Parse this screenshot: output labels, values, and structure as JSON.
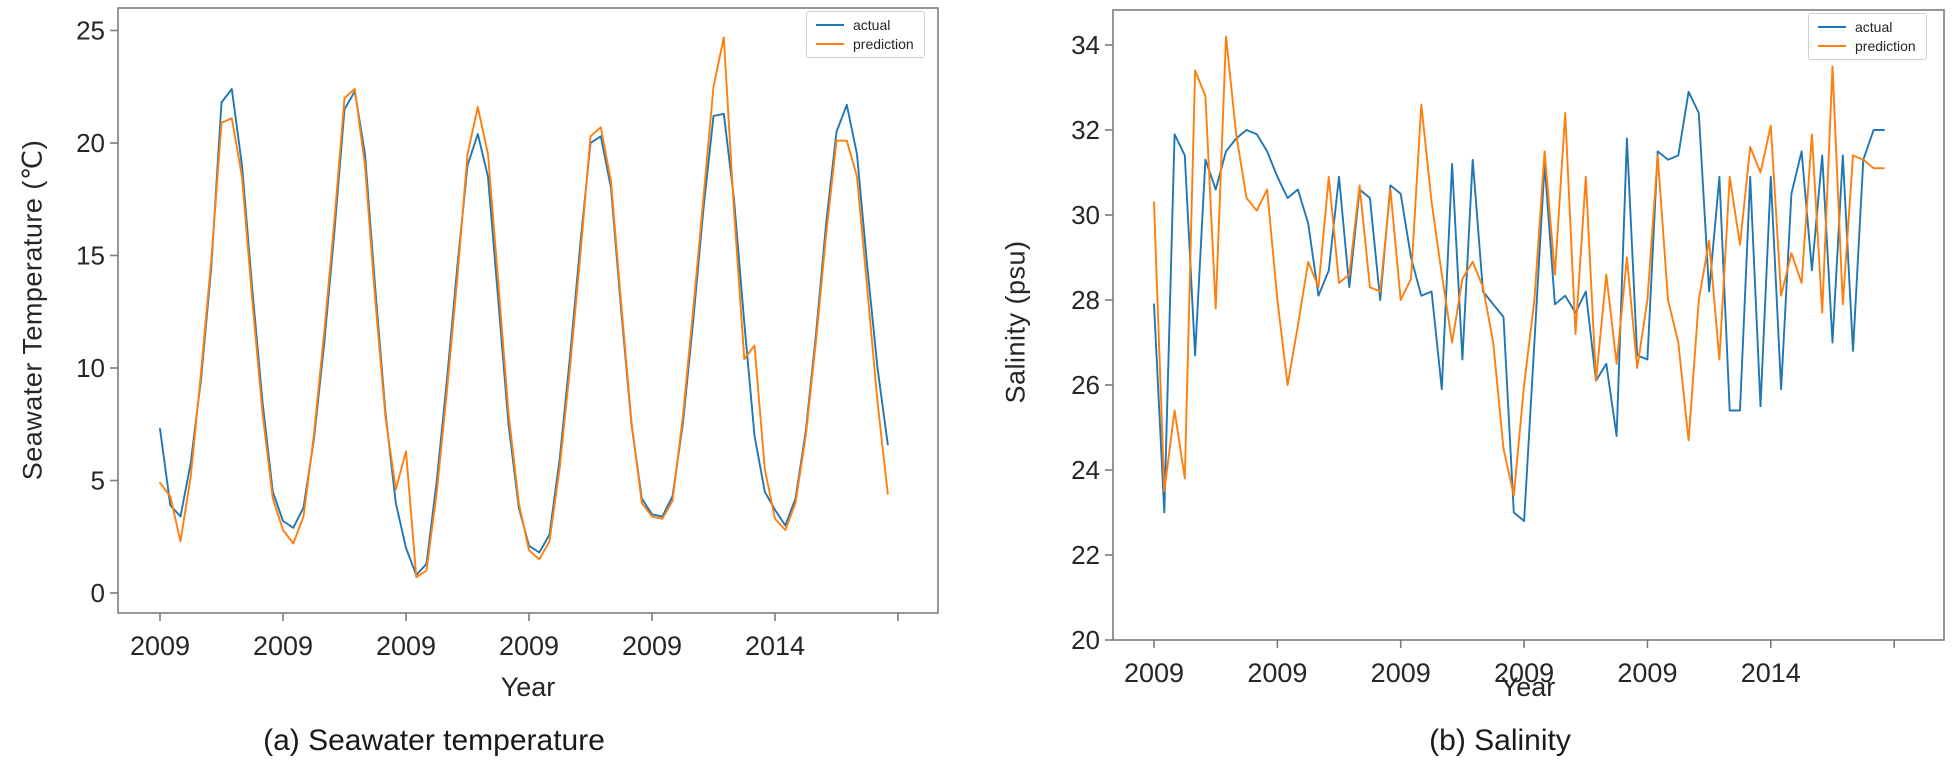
{
  "page": {
    "background": "#ffffff"
  },
  "colors": {
    "actual": "#1f77b4",
    "prediction": "#ff7f0e",
    "spine": "#7c7c7c",
    "text": "#262626"
  },
  "chart_data": [
    {
      "type": "line",
      "caption": "(a) Seawater temperature",
      "xlabel": "Year",
      "ylabel": "Seawater Temperature (℃)",
      "legend": [
        "actual",
        "prediction"
      ],
      "legend_position": "upper right",
      "grid": false,
      "x_tick_labels": [
        "2009",
        "2009",
        "2009",
        "2009",
        "2009",
        "2014",
        ""
      ],
      "y_ticks": [
        0,
        5,
        10,
        15,
        20,
        25
      ],
      "ylim": [
        -0.9,
        26.0
      ],
      "n_points": 72,
      "x_unit": "month (6 consecutive years, Jan–Dec each)",
      "series": [
        {
          "name": "actual",
          "color": "#1f77b4",
          "values": [
            7.3,
            3.9,
            3.4,
            5.8,
            9.5,
            14.5,
            21.8,
            22.4,
            19.0,
            13.5,
            8.5,
            4.5,
            3.2,
            2.9,
            3.8,
            6.8,
            11.0,
            16.0,
            21.5,
            22.3,
            19.5,
            13.5,
            8.0,
            4.0,
            2.0,
            0.8,
            1.3,
            5.0,
            9.5,
            14.5,
            19.0,
            20.4,
            18.5,
            13.0,
            7.5,
            3.8,
            2.1,
            1.8,
            2.6,
            6.0,
            10.5,
            15.5,
            20.0,
            20.3,
            18.0,
            12.5,
            7.5,
            4.2,
            3.5,
            3.4,
            4.3,
            7.5,
            12.0,
            17.0,
            21.2,
            21.3,
            17.5,
            12.0,
            7.0,
            4.5,
            3.7,
            3.0,
            4.2,
            7.2,
            11.5,
            16.5,
            20.5,
            21.7,
            19.5,
            14.5,
            10.0,
            6.6
          ]
        },
        {
          "name": "prediction",
          "color": "#ff7f0e",
          "values": [
            4.9,
            4.3,
            2.3,
            5.2,
            9.8,
            14.8,
            20.9,
            21.1,
            18.5,
            13.0,
            8.0,
            4.2,
            2.8,
            2.2,
            3.4,
            7.0,
            11.5,
            16.5,
            22.0,
            22.4,
            19.0,
            13.0,
            7.8,
            4.6,
            6.3,
            0.7,
            1.0,
            4.5,
            9.0,
            14.0,
            19.5,
            21.6,
            19.5,
            13.8,
            8.0,
            4.0,
            1.9,
            1.5,
            2.3,
            5.6,
            10.0,
            15.0,
            20.3,
            20.7,
            18.3,
            12.8,
            7.6,
            4.0,
            3.4,
            3.3,
            4.1,
            7.8,
            12.5,
            17.5,
            22.5,
            24.7,
            17.0,
            10.4,
            11.0,
            5.5,
            3.3,
            2.8,
            4.0,
            7.0,
            11.2,
            16.0,
            20.1,
            20.1,
            18.5,
            13.5,
            8.5,
            4.4
          ]
        }
      ]
    },
    {
      "type": "line",
      "caption": "(b) Salinity",
      "xlabel": "Year",
      "ylabel": "Salinity (psu)",
      "legend": [
        "actual",
        "prediction"
      ],
      "legend_position": "upper right",
      "grid": false,
      "x_tick_labels": [
        "2009",
        "2009",
        "2009",
        "2009",
        "2009",
        "2014",
        ""
      ],
      "y_ticks": [
        20,
        22,
        24,
        26,
        28,
        30,
        32,
        34
      ],
      "ylim": [
        20,
        34.8
      ],
      "n_points": 72,
      "x_unit": "month (6 consecutive years, Jan–Dec each)",
      "series": [
        {
          "name": "actual",
          "color": "#1f77b4",
          "values": [
            27.9,
            23.0,
            31.9,
            31.4,
            26.7,
            31.3,
            30.6,
            31.5,
            31.8,
            32.0,
            31.9,
            31.5,
            30.9,
            30.4,
            30.6,
            29.8,
            28.1,
            28.7,
            30.9,
            28.3,
            30.6,
            30.4,
            28.0,
            30.7,
            30.5,
            29.0,
            28.1,
            28.2,
            25.9,
            31.2,
            26.6,
            31.3,
            28.2,
            27.9,
            27.6,
            23.0,
            22.8,
            27.0,
            31.2,
            27.9,
            28.1,
            27.7,
            28.2,
            26.1,
            26.5,
            24.8,
            31.8,
            26.7,
            26.6,
            31.5,
            31.3,
            31.4,
            32.9,
            32.4,
            28.2,
            30.9,
            25.4,
            25.4,
            30.9,
            25.5,
            30.9,
            25.9,
            30.5,
            31.5,
            28.7,
            31.4,
            27.0,
            31.4,
            26.8,
            31.3,
            32.0,
            32.0
          ]
        },
        {
          "name": "prediction",
          "color": "#ff7f0e",
          "values": [
            30.3,
            23.5,
            25.4,
            23.8,
            33.4,
            32.8,
            27.8,
            34.2,
            31.9,
            30.4,
            30.1,
            30.6,
            28.0,
            26.0,
            27.4,
            28.9,
            28.3,
            30.9,
            28.4,
            28.6,
            30.7,
            28.3,
            28.2,
            30.6,
            28.0,
            28.5,
            32.6,
            30.3,
            28.6,
            27.0,
            28.5,
            28.9,
            28.3,
            27.0,
            24.5,
            23.4,
            26.0,
            28.0,
            31.5,
            28.6,
            32.4,
            27.2,
            30.9,
            26.1,
            28.6,
            26.5,
            29.0,
            26.4,
            28.0,
            31.4,
            28.0,
            27.0,
            24.7,
            28.0,
            29.4,
            26.6,
            30.9,
            29.3,
            31.6,
            31.0,
            32.1,
            28.1,
            29.1,
            28.4,
            31.9,
            27.7,
            33.5,
            27.9,
            31.4,
            31.3,
            31.1,
            31.1
          ]
        }
      ]
    }
  ]
}
